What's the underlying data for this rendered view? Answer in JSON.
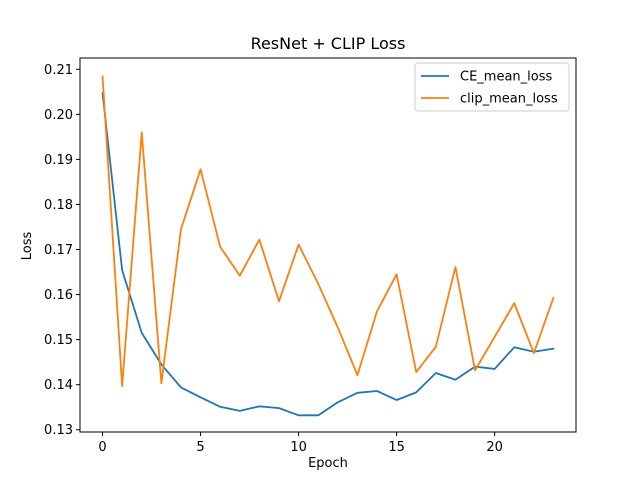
{
  "chart_data": {
    "type": "line",
    "title": "ResNet + CLIP Loss",
    "xlabel": "Epoch",
    "ylabel": "Loss",
    "xlim": [
      -1.15,
      24.15
    ],
    "ylim": [
      0.1295,
      0.2125
    ],
    "xticks": [
      0,
      5,
      10,
      15,
      20
    ],
    "xtick_labels": [
      "0",
      "5",
      "10",
      "15",
      "20"
    ],
    "yticks": [
      0.13,
      0.14,
      0.15,
      0.16,
      0.17,
      0.18,
      0.19,
      0.2,
      0.21
    ],
    "ytick_labels": [
      "0.13",
      "0.14",
      "0.15",
      "0.16",
      "0.17",
      "0.18",
      "0.19",
      "0.20",
      "0.21"
    ],
    "grid": false,
    "legend_position": "top-right",
    "x": [
      0,
      1,
      2,
      3,
      4,
      5,
      6,
      7,
      8,
      9,
      10,
      11,
      12,
      13,
      14,
      15,
      16,
      17,
      18,
      19,
      20,
      21,
      22,
      23
    ],
    "series": [
      {
        "name": "CE_mean_loss",
        "color": "#1f77b4",
        "values": [
          0.2047,
          0.1654,
          0.1515,
          0.1445,
          0.1394,
          0.1372,
          0.1351,
          0.1342,
          0.1352,
          0.1348,
          0.1332,
          0.1332,
          0.1361,
          0.1382,
          0.1386,
          0.1366,
          0.1383,
          0.1426,
          0.1411,
          0.144,
          0.1435,
          0.1483,
          0.1473,
          0.148
        ]
      },
      {
        "name": "clip_mean_loss",
        "color": "#ff7f0e",
        "values": [
          0.2084,
          0.1397,
          0.196,
          0.1403,
          0.1745,
          0.1878,
          0.1706,
          0.1642,
          0.1722,
          0.1585,
          0.1711,
          0.1624,
          0.1527,
          0.1421,
          0.1563,
          0.1645,
          0.1428,
          0.1484,
          0.1661,
          0.1432,
          0.1506,
          0.1581,
          0.147,
          0.1593
        ]
      }
    ]
  }
}
